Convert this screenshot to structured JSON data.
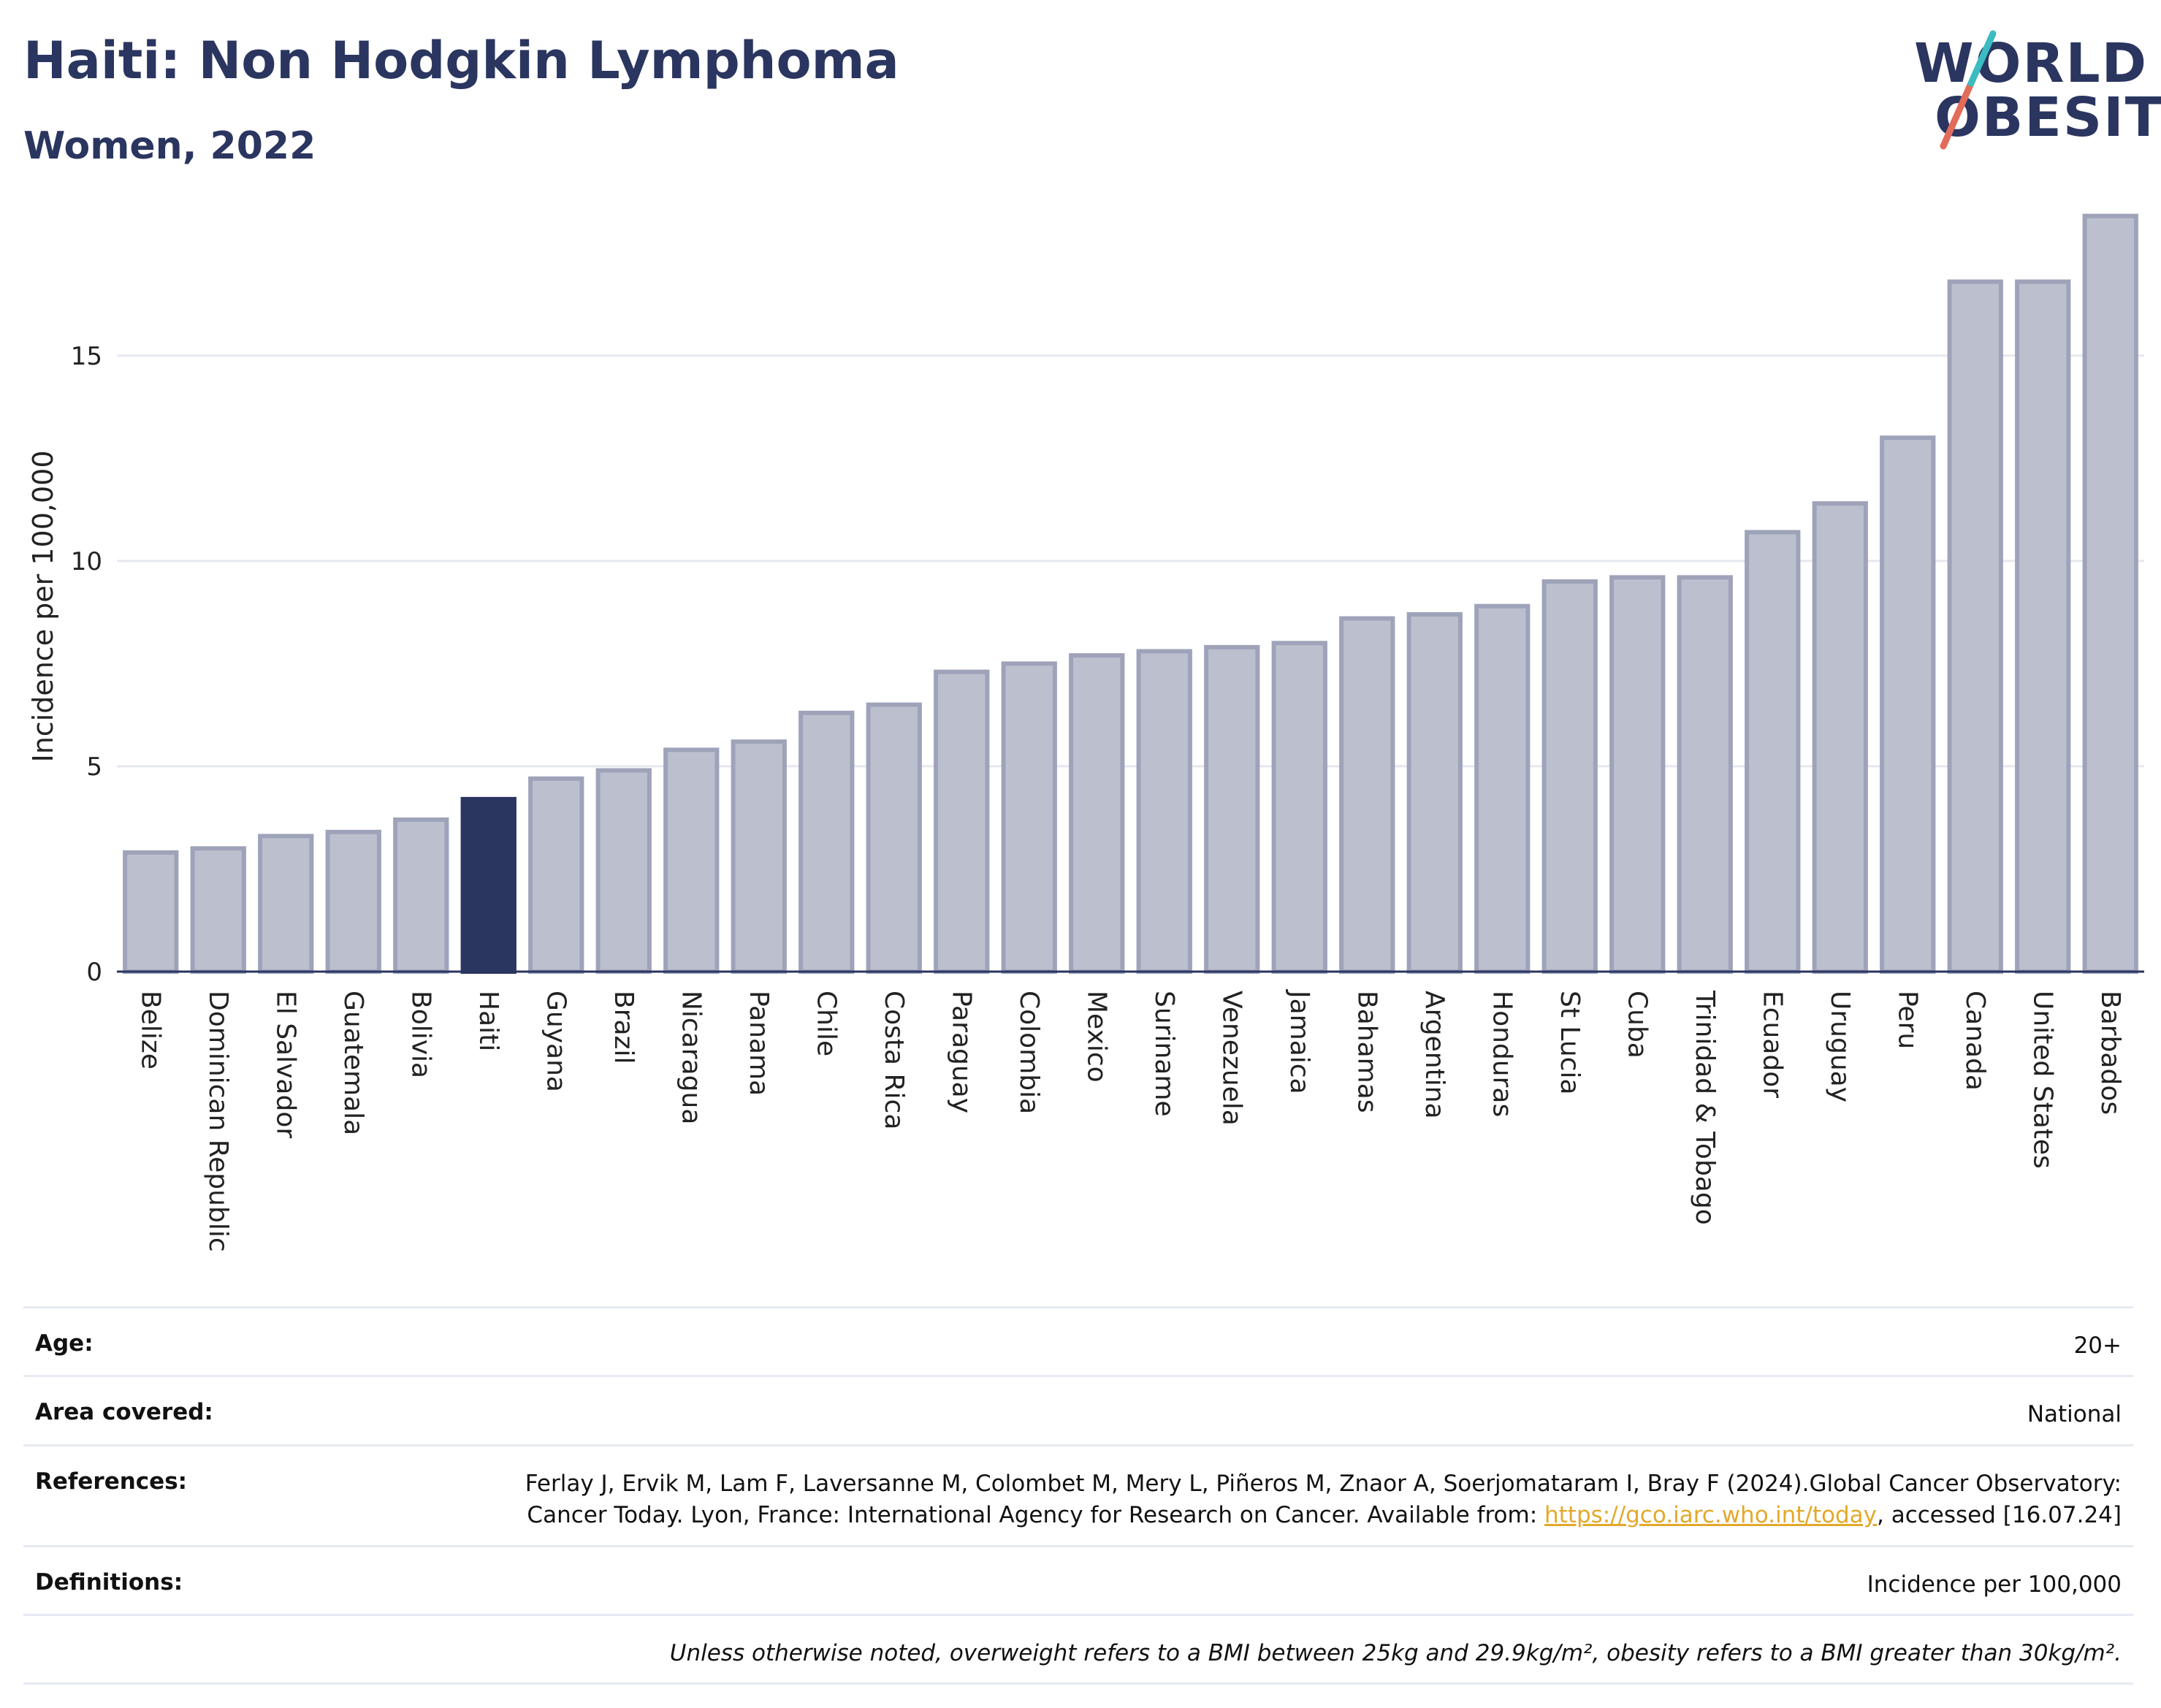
{
  "header": {
    "title": "Haiti: Non Hodgkin Lymphoma",
    "subtitle": "Women, 2022"
  },
  "logo": {
    "line1": "WORLD",
    "line2": "OBESITY"
  },
  "colors": {
    "highlight": "#2a3560",
    "bar": "#bcc0ce",
    "bar_border": "#9ea3b9",
    "grid": "#e5e8ef",
    "logo_teal": "#3bbcc0",
    "logo_coral": "#e36b5a",
    "link": "#e3a92a"
  },
  "chart_data": {
    "type": "bar",
    "ylabel": "Incidence per 100,000",
    "xlabel": "",
    "ylim": [
      0,
      18.5
    ],
    "yticks": [
      0,
      5,
      10,
      15
    ],
    "grid": true,
    "highlight": "Haiti",
    "categories": [
      "Belize",
      "Dominican Republic",
      "El Salvador",
      "Guatemala",
      "Bolivia",
      "Haiti",
      "Guyana",
      "Brazil",
      "Nicaragua",
      "Panama",
      "Chile",
      "Costa Rica",
      "Paraguay",
      "Colombia",
      "Mexico",
      "Suriname",
      "Venezuela",
      "Jamaica",
      "Bahamas",
      "Argentina",
      "Honduras",
      "St Lucia",
      "Cuba",
      "Trinidad & Tobago",
      "Ecuador",
      "Uruguay",
      "Peru",
      "Canada",
      "United States",
      "Barbados"
    ],
    "values": [
      2.9,
      3.0,
      3.3,
      3.4,
      3.7,
      4.2,
      4.7,
      4.9,
      5.4,
      5.6,
      6.3,
      6.5,
      7.3,
      7.5,
      7.7,
      7.8,
      7.9,
      8.0,
      8.6,
      8.7,
      8.9,
      9.5,
      9.6,
      9.6,
      10.7,
      11.4,
      13.0,
      16.8,
      16.8,
      18.4
    ]
  },
  "meta": {
    "age_label": "Age:",
    "age_value": "20+",
    "area_label": "Area covered:",
    "area_value": "National",
    "references_label": "References:",
    "references_text": "Ferlay J, Ervik M, Lam F, Laversanne M, Colombet M, Mery L, Piñeros M, Znaor A, Soerjomataram I, Bray F (2024).Global Cancer Observatory: Cancer Today. Lyon, France: International Agency for Research on Cancer. Available from: ",
    "references_link": "https://gco.iarc.who.int/today",
    "references_tail": ", accessed [16.07.24]",
    "definitions_label": "Definitions:",
    "definitions_value": "Incidence per 100,000",
    "note": "Unless otherwise noted, overweight refers to a BMI between 25kg and 29.9kg/m², obesity refers to a BMI greater than 30kg/m²."
  }
}
